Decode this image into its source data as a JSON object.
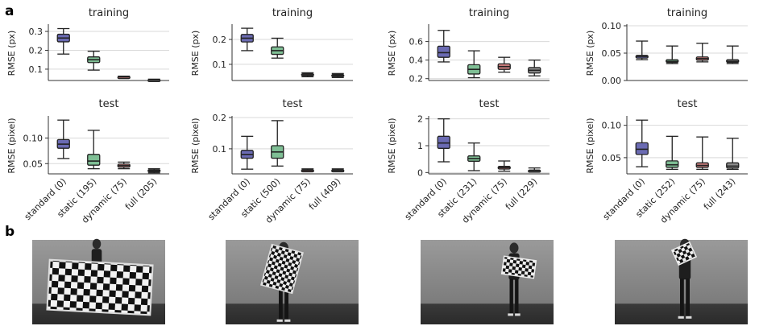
{
  "figure": {
    "panel_a_letter": "a",
    "panel_b_letter": "b"
  },
  "colors": {
    "standard": "#6b6bb3",
    "static": "#7fbf95",
    "dynamic": "#d08080",
    "full": "#8c8c8c"
  },
  "photos": [
    {
      "name": "photo-1",
      "subject": "person holding large checkerboard horizontally"
    },
    {
      "name": "photo-2",
      "subject": "person holding tilted checkerboard"
    },
    {
      "name": "photo-3",
      "subject": "person holding small checkerboard at waist"
    },
    {
      "name": "photo-4",
      "subject": "person holding small checkerboard at shoulder"
    }
  ],
  "chart_data": [
    {
      "type": "box",
      "title": "training",
      "ylabel": "RMSE (px)",
      "ylim": [
        0.04,
        0.33
      ],
      "yticks": [
        0.1,
        0.2,
        0.3
      ],
      "tick_labels": [
        "0.1",
        "0.2",
        "0.3"
      ],
      "categories": [
        "standard (0)",
        "static (195)",
        "dynamic (75)",
        "full (205)"
      ],
      "series": [
        {
          "min": 0.18,
          "q1": 0.245,
          "median": 0.265,
          "q3": 0.285,
          "max": 0.315
        },
        {
          "min": 0.095,
          "q1": 0.135,
          "median": 0.15,
          "q3": 0.165,
          "max": 0.195
        },
        {
          "min": 0.055,
          "q1": 0.057,
          "median": 0.059,
          "q3": 0.061,
          "max": 0.063
        },
        {
          "min": 0.038,
          "q1": 0.041,
          "median": 0.043,
          "q3": 0.045,
          "max": 0.047
        }
      ]
    },
    {
      "type": "box",
      "title": "training",
      "ylabel": "RMSE (px)",
      "ylim": [
        0.035,
        0.255
      ],
      "yticks": [
        0.1,
        0.2
      ],
      "tick_labels": [
        "0.1",
        "0.2"
      ],
      "categories": [
        "standard (0)",
        "static (500)",
        "dynamic (75)",
        "full (409)"
      ],
      "series": [
        {
          "min": 0.155,
          "q1": 0.19,
          "median": 0.205,
          "q3": 0.22,
          "max": 0.245
        },
        {
          "min": 0.125,
          "q1": 0.14,
          "median": 0.155,
          "q3": 0.17,
          "max": 0.205
        },
        {
          "min": 0.05,
          "q1": 0.054,
          "median": 0.058,
          "q3": 0.062,
          "max": 0.066
        },
        {
          "min": 0.047,
          "q1": 0.051,
          "median": 0.055,
          "q3": 0.059,
          "max": 0.063
        }
      ]
    },
    {
      "type": "box",
      "title": "training",
      "ylabel": "RMSE (px)",
      "ylim": [
        0.18,
        0.77
      ],
      "yticks": [
        0.2,
        0.4,
        0.6
      ],
      "tick_labels": [
        "0.2",
        "0.4",
        "0.6"
      ],
      "categories": [
        "standard (0)",
        "static (231)",
        "dynamic (75)",
        "full (229)"
      ],
      "series": [
        {
          "min": 0.38,
          "q1": 0.43,
          "median": 0.48,
          "q3": 0.55,
          "max": 0.72
        },
        {
          "min": 0.21,
          "q1": 0.25,
          "median": 0.3,
          "q3": 0.35,
          "max": 0.5
        },
        {
          "min": 0.27,
          "q1": 0.3,
          "median": 0.33,
          "q3": 0.36,
          "max": 0.43
        },
        {
          "min": 0.23,
          "q1": 0.26,
          "median": 0.29,
          "q3": 0.32,
          "max": 0.4
        }
      ]
    },
    {
      "type": "box",
      "title": "training",
      "ylabel": "RMSE (px)",
      "ylim": [
        0.0,
        0.1
      ],
      "yticks": [
        0.0,
        0.05,
        0.1
      ],
      "tick_labels": [
        "0.00",
        "0.05",
        "0.10"
      ],
      "categories": [
        "standard (0)",
        "static (252)",
        "dynamic (75)",
        "full (243)"
      ],
      "series": [
        {
          "min": 0.038,
          "q1": 0.041,
          "median": 0.044,
          "q3": 0.046,
          "max": 0.072
        },
        {
          "min": 0.031,
          "q1": 0.033,
          "median": 0.035,
          "q3": 0.038,
          "max": 0.063
        },
        {
          "min": 0.034,
          "q1": 0.037,
          "median": 0.04,
          "q3": 0.043,
          "max": 0.068
        },
        {
          "min": 0.031,
          "q1": 0.033,
          "median": 0.035,
          "q3": 0.038,
          "max": 0.063
        }
      ]
    },
    {
      "type": "box",
      "title": "test",
      "ylabel": "RMSE (pixel)",
      "ylim": [
        0.03,
        0.14
      ],
      "yticks": [
        0.05,
        0.1
      ],
      "tick_labels": [
        "0.05",
        "0.10"
      ],
      "categories": [
        "standard (0)",
        "static (195)",
        "dynamic (75)",
        "full (205)"
      ],
      "series": [
        {
          "min": 0.06,
          "q1": 0.08,
          "median": 0.088,
          "q3": 0.097,
          "max": 0.135
        },
        {
          "min": 0.04,
          "q1": 0.047,
          "median": 0.055,
          "q3": 0.068,
          "max": 0.115
        },
        {
          "min": 0.04,
          "q1": 0.043,
          "median": 0.046,
          "q3": 0.049,
          "max": 0.053
        },
        {
          "min": 0.032,
          "q1": 0.034,
          "median": 0.036,
          "q3": 0.038,
          "max": 0.04
        }
      ]
    },
    {
      "type": "box",
      "title": "test",
      "ylabel": "RMSE (pixel)",
      "ylim": [
        0.02,
        0.2
      ],
      "yticks": [
        0.1,
        0.2
      ],
      "tick_labels": [
        "0.1",
        "0.2"
      ],
      "categories": [
        "standard (0)",
        "static (500)",
        "dynamic (75)",
        "full (409)"
      ],
      "series": [
        {
          "min": 0.035,
          "q1": 0.07,
          "median": 0.082,
          "q3": 0.095,
          "max": 0.14
        },
        {
          "min": 0.045,
          "q1": 0.07,
          "median": 0.09,
          "q3": 0.11,
          "max": 0.19
        },
        {
          "min": 0.027,
          "q1": 0.029,
          "median": 0.031,
          "q3": 0.033,
          "max": 0.036
        },
        {
          "min": 0.027,
          "q1": 0.029,
          "median": 0.031,
          "q3": 0.033,
          "max": 0.036
        }
      ]
    },
    {
      "type": "box",
      "title": "test",
      "ylabel": "RMSE (pixel)",
      "ylim": [
        -0.05,
        2.05
      ],
      "yticks": [
        0,
        1,
        2
      ],
      "tick_labels": [
        "0",
        "1",
        "2"
      ],
      "categories": [
        "standard (0)",
        "static (231)",
        "dynamic (75)",
        "full (229)"
      ],
      "series": [
        {
          "min": 0.4,
          "q1": 0.9,
          "median": 1.1,
          "q3": 1.35,
          "max": 2.0
        },
        {
          "min": 0.07,
          "q1": 0.42,
          "median": 0.52,
          "q3": 0.62,
          "max": 1.1
        },
        {
          "min": 0.05,
          "q1": 0.13,
          "median": 0.18,
          "q3": 0.23,
          "max": 0.43
        },
        {
          "min": 0.03,
          "q1": 0.05,
          "median": 0.07,
          "q3": 0.09,
          "max": 0.17
        }
      ]
    },
    {
      "type": "box",
      "title": "test",
      "ylabel": "RMSE (pixel)",
      "ylim": [
        0.025,
        0.112
      ],
      "yticks": [
        0.05,
        0.1
      ],
      "tick_labels": [
        "0.05",
        "0.10"
      ],
      "categories": [
        "standard (0)",
        "static (252)",
        "dynamic (75)",
        "full (243)"
      ],
      "series": [
        {
          "min": 0.036,
          "q1": 0.055,
          "median": 0.063,
          "q3": 0.073,
          "max": 0.108
        },
        {
          "min": 0.032,
          "q1": 0.035,
          "median": 0.039,
          "q3": 0.045,
          "max": 0.083
        },
        {
          "min": 0.032,
          "q1": 0.035,
          "median": 0.038,
          "q3": 0.042,
          "max": 0.082
        },
        {
          "min": 0.032,
          "q1": 0.034,
          "median": 0.037,
          "q3": 0.042,
          "max": 0.08
        }
      ]
    }
  ]
}
